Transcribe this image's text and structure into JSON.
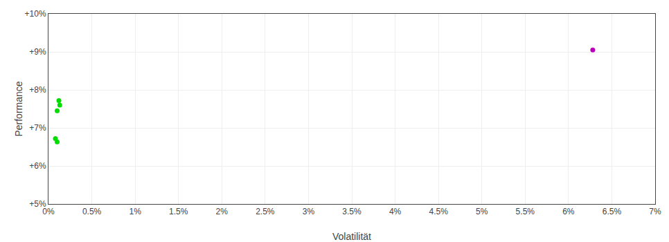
{
  "chart_data": {
    "type": "scatter",
    "xlabel": "Volatilität",
    "ylabel": "Performance",
    "xlim": [
      0,
      7.0
    ],
    "ylim": [
      5.0,
      10.0
    ],
    "xticks": [
      {
        "value": 0,
        "label": "0%"
      },
      {
        "value": 0.5,
        "label": "0.5%"
      },
      {
        "value": 1.0,
        "label": "1%"
      },
      {
        "value": 1.5,
        "label": "1.5%"
      },
      {
        "value": 2.0,
        "label": "2%"
      },
      {
        "value": 2.5,
        "label": "2.5%"
      },
      {
        "value": 3.0,
        "label": "3%"
      },
      {
        "value": 3.5,
        "label": "3.5%"
      },
      {
        "value": 4.0,
        "label": "4%"
      },
      {
        "value": 4.5,
        "label": "4.5%"
      },
      {
        "value": 5.0,
        "label": "5%"
      },
      {
        "value": 5.5,
        "label": "5.5%"
      },
      {
        "value": 6.0,
        "label": "6%"
      },
      {
        "value": 6.5,
        "label": "6.5%"
      },
      {
        "value": 7.0,
        "label": "7%"
      }
    ],
    "yticks": [
      {
        "value": 5,
        "label": "+5%"
      },
      {
        "value": 6,
        "label": "+6%"
      },
      {
        "value": 7,
        "label": "+7%"
      },
      {
        "value": 8,
        "label": "+8%"
      },
      {
        "value": 9,
        "label": "+9%"
      },
      {
        "value": 10,
        "label": "+10%"
      }
    ],
    "grid": true,
    "series": [
      {
        "color": "#00dd00",
        "x": [
          0.12,
          0.13,
          0.1,
          0.08,
          0.1
        ],
        "values": [
          7.72,
          7.6,
          7.45,
          6.72,
          6.63
        ]
      },
      {
        "color": "#bb00bb",
        "x": [
          6.28
        ],
        "values": [
          9.05
        ]
      }
    ]
  }
}
